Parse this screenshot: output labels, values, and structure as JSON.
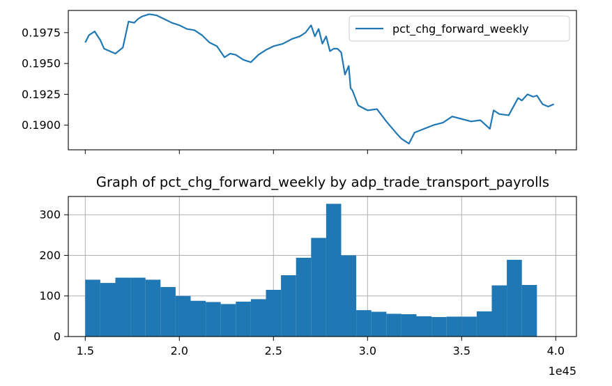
{
  "chart_data": [
    {
      "type": "line",
      "title": "",
      "xlabel": "",
      "ylabel": "",
      "legend": {
        "location": "upper-right",
        "entries": [
          "pct_chg_forward_weekly"
        ]
      },
      "grid": false,
      "x_shared_with_lower_chart": true,
      "x_tick_labels_visible": false,
      "xlim": [
        1.41,
        4.11
      ],
      "ylim": [
        0.188,
        0.1993
      ],
      "yticks": [
        0.19,
        0.1925,
        0.195,
        0.1975
      ],
      "ytick_labels": [
        "0.1900",
        "0.1925",
        "0.1950",
        "0.1975"
      ],
      "color": "#1f77b4",
      "series": [
        {
          "name": "pct_chg_forward_weekly",
          "x": [
            1.5,
            1.52,
            1.55,
            1.58,
            1.6,
            1.63,
            1.66,
            1.7,
            1.73,
            1.76,
            1.78,
            1.8,
            1.84,
            1.88,
            1.92,
            1.96,
            2.0,
            2.04,
            2.08,
            2.12,
            2.16,
            2.2,
            2.24,
            2.27,
            2.3,
            2.34,
            2.38,
            2.42,
            2.46,
            2.5,
            2.55,
            2.6,
            2.64,
            2.67,
            2.7,
            2.72,
            2.74,
            2.76,
            2.78,
            2.8,
            2.82,
            2.84,
            2.86,
            2.88,
            2.9,
            2.91,
            2.92,
            2.95,
            3.0,
            3.05,
            3.1,
            3.15,
            3.18,
            3.22,
            3.25,
            3.3,
            3.35,
            3.4,
            3.45,
            3.5,
            3.55,
            3.6,
            3.65,
            3.67,
            3.7,
            3.75,
            3.8,
            3.82,
            3.85,
            3.88,
            3.9,
            3.93,
            3.96,
            3.99
          ],
          "values": [
            0.1967,
            0.1973,
            0.1976,
            0.1969,
            0.1962,
            0.196,
            0.1958,
            0.1963,
            0.1984,
            0.1983,
            0.1986,
            0.1988,
            0.199,
            0.1989,
            0.1986,
            0.1983,
            0.1981,
            0.1978,
            0.1977,
            0.1973,
            0.1967,
            0.1964,
            0.1955,
            0.1958,
            0.1957,
            0.1953,
            0.1951,
            0.1957,
            0.1961,
            0.1964,
            0.1966,
            0.197,
            0.1972,
            0.1975,
            0.1981,
            0.1972,
            0.1978,
            0.1966,
            0.1972,
            0.196,
            0.1962,
            0.1962,
            0.1959,
            0.1941,
            0.1948,
            0.193,
            0.1928,
            0.1916,
            0.1912,
            0.1913,
            0.1903,
            0.1894,
            0.1889,
            0.1885,
            0.1894,
            0.1897,
            0.19,
            0.1902,
            0.1907,
            0.1905,
            0.1903,
            0.1904,
            0.1897,
            0.1912,
            0.1909,
            0.1908,
            0.1922,
            0.192,
            0.1925,
            0.1923,
            0.1924,
            0.1917,
            0.1915,
            0.1917
          ]
        }
      ]
    },
    {
      "type": "bar",
      "title": "Graph of pct_chg_forward_weekly by adp_trade_transport_payrolls",
      "xlabel": "",
      "ylabel": "",
      "grid": true,
      "xlim": [
        1.41,
        4.11
      ],
      "ylim": [
        0,
        345
      ],
      "xticks": [
        1.5,
        2.0,
        2.5,
        3.0,
        3.5,
        4.0
      ],
      "xtick_labels": [
        "1.5",
        "2.0",
        "2.5",
        "3.0",
        "3.5",
        "4.0"
      ],
      "x_offset_label": "1e45",
      "yticks": [
        0,
        100,
        200,
        300
      ],
      "ytick_labels": [
        "0",
        "100",
        "200",
        "300"
      ],
      "bin_start": 1.5,
      "bin_width": 0.08,
      "color": "#1f77b4",
      "values": [
        140,
        132,
        145,
        145,
        140,
        122,
        100,
        88,
        85,
        80,
        86,
        92,
        115,
        151,
        194,
        243,
        327,
        200,
        65,
        61,
        56,
        55,
        50,
        48,
        49,
        49,
        62,
        126,
        189,
        127
      ]
    }
  ]
}
